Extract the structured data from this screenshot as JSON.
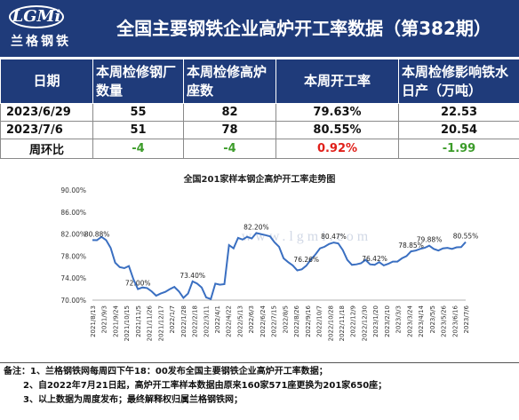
{
  "header": {
    "logo_text": "LGMi",
    "logo_sub": "兰格钢铁",
    "title": "全国主要钢铁企业高炉开工率数据（第382期）"
  },
  "table": {
    "headers": [
      "日期",
      "本周检修钢厂数量",
      "本周检修高炉座数",
      "本周开工率",
      "本周检修影响铁水日产（万吨）"
    ],
    "rows": [
      [
        "2023/6/29",
        "55",
        "82",
        "79.63%",
        "22.53"
      ],
      [
        "2023/7/6",
        "51",
        "78",
        "80.55%",
        "20.54"
      ]
    ],
    "wow": [
      "周环比",
      "-4",
      "-4",
      "0.92%",
      "-1.99"
    ]
  },
  "colors": {
    "header_bg": "#1f3b7a",
    "line": "#3a6fc1",
    "positive": "#e0201a",
    "negative": "#3c9c2a"
  },
  "watermark": "www.lgmi.com",
  "chart_data": {
    "type": "line",
    "title": "全国201家样本钢企高炉开工率走势图",
    "yticks": [
      "70.00%",
      "74.00%",
      "78.00%",
      "82.00%",
      "86.00%",
      "90.00%"
    ],
    "ylim": [
      70,
      90
    ],
    "x_tick_labels": [
      "2021/8/13",
      "2021/9/3",
      "2021/9/24",
      "2021/10/15",
      "2021/11/5",
      "2021/11/26",
      "2021/12/17",
      "2022/1/7",
      "2022/1/28",
      "2022/2/18",
      "2022/3/11",
      "2022/4/1",
      "2022/4/22",
      "2022/5/13",
      "2022/6/3",
      "2022/6/24",
      "2022/7/15",
      "2022/8/5",
      "2022/8/26",
      "2022/9/16",
      "2022/10/7",
      "2022/10/28",
      "2022/11/18",
      "2022/12/9",
      "2022/12/30",
      "2023/1/20",
      "2023/2/10",
      "2023/3/3",
      "2023/3/24",
      "2023/4/14",
      "2023/5/5",
      "2023/5/26",
      "2023/6/16",
      "2023/7/6"
    ],
    "values": [
      80.9,
      80.88,
      81.5,
      80.9,
      79.5,
      76.8,
      76.0,
      75.8,
      76.2,
      73.8,
      72.0,
      72.3,
      72.2,
      71.6,
      70.8,
      71.2,
      71.5,
      72.0,
      72.4,
      71.6,
      70.4,
      71.2,
      73.4,
      73.0,
      72.3,
      70.5,
      70.2,
      73.0,
      72.8,
      72.9,
      80.0,
      79.4,
      81.3,
      81.0,
      81.5,
      81.2,
      82.2,
      82.0,
      81.8,
      81.6,
      80.5,
      79.7,
      77.6,
      76.9,
      76.3,
      75.4,
      75.6,
      76.26,
      77.4,
      78.3,
      79.4,
      79.7,
      80.2,
      80.47,
      80.3,
      79.1,
      77.3,
      76.4,
      76.5,
      76.7,
      77.3,
      76.5,
      76.42,
      76.9,
      76.3,
      76.6,
      77.0,
      77.0,
      77.6,
      78.0,
      78.85,
      79.0,
      79.3,
      79.5,
      79.88,
      79.3,
      79.0,
      79.4,
      79.5,
      79.3,
      79.6,
      79.63,
      80.55
    ],
    "annotations": [
      {
        "index": 1,
        "label": "80.88%"
      },
      {
        "index": 10,
        "label": "72.00%"
      },
      {
        "index": 22,
        "label": "73.40%"
      },
      {
        "index": 36,
        "label": "82.20%"
      },
      {
        "index": 47,
        "label": "76.26%"
      },
      {
        "index": 53,
        "label": "80.47%"
      },
      {
        "index": 62,
        "label": "76.42%"
      },
      {
        "index": 70,
        "label": "78.85%"
      },
      {
        "index": 74,
        "label": "79.88%"
      },
      {
        "index": 82,
        "label": "80.55%"
      }
    ],
    "grid": false
  },
  "footnotes": [
    "备注：1、兰格钢铁网每周四下午18：00发布全国主要钢铁企业高炉开工率数据；",
    "2、自2022年7月21日起，高炉开工率样本数据由原来160家571座更换为201家650座；",
    "3、以上数据为周度发布；最终解释权归属兰格钢铁网；"
  ]
}
